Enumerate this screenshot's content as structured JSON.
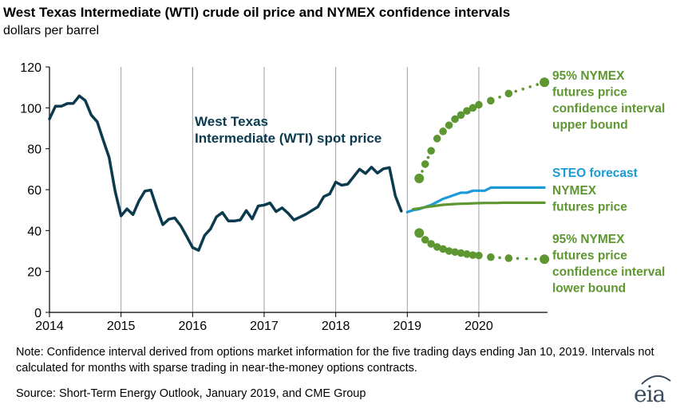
{
  "title": "West Texas Intermediate (WTI) crude oil price and NYMEX confidence intervals",
  "subtitle": "dollars per barrel",
  "note": "Note: Confidence interval derived from options market information for the five trading days ending Jan 10, 2019. Intervals not calculated for months with sparse trading in near-the-money options contracts.",
  "source": "Source: Short-Term Energy Outlook, January 2019, and CME Group",
  "logo_text": "eia",
  "colors": {
    "spot": "#0b3a4f",
    "steo": "#1a9ad6",
    "nymex": "#5e9732",
    "axis": "#000000",
    "grid": "#9e9e9e"
  },
  "chart_data": {
    "type": "line",
    "xlabel": "",
    "ylabel": "",
    "xlim": [
      2014,
      2020.96
    ],
    "ylim": [
      0,
      120
    ],
    "x_ticks": [
      "2014",
      "2015",
      "2016",
      "2017",
      "2018",
      "2019",
      "2020"
    ],
    "y_ticks": [
      "0",
      "20",
      "40",
      "60",
      "80",
      "100",
      "120"
    ],
    "vertical_gridlines": true,
    "series": [
      {
        "name": "West Texas Intermediate (WTI) spot price",
        "label_lines": [
          "West Texas",
          "Intermediate (WTI) spot price"
        ],
        "style": "line",
        "color": "#0b3a4f",
        "x": [
          "2014-01",
          "2014-02",
          "2014-03",
          "2014-04",
          "2014-05",
          "2014-06",
          "2014-07",
          "2014-08",
          "2014-09",
          "2014-10",
          "2014-11",
          "2014-12",
          "2015-01",
          "2015-02",
          "2015-03",
          "2015-04",
          "2015-05",
          "2015-06",
          "2015-07",
          "2015-08",
          "2015-09",
          "2015-10",
          "2015-11",
          "2015-12",
          "2016-01",
          "2016-02",
          "2016-03",
          "2016-04",
          "2016-05",
          "2016-06",
          "2016-07",
          "2016-08",
          "2016-09",
          "2016-10",
          "2016-11",
          "2016-12",
          "2017-01",
          "2017-02",
          "2017-03",
          "2017-04",
          "2017-05",
          "2017-06",
          "2017-07",
          "2017-08",
          "2017-09",
          "2017-10",
          "2017-11",
          "2017-12",
          "2018-01",
          "2018-02",
          "2018-03",
          "2018-04",
          "2018-05",
          "2018-06",
          "2018-07",
          "2018-08",
          "2018-09",
          "2018-10",
          "2018-11",
          "2018-12"
        ],
        "values": [
          94.6,
          100.8,
          100.8,
          102.1,
          102.2,
          105.8,
          103.6,
          96.5,
          93.2,
          84.4,
          75.8,
          59.3,
          47.2,
          50.6,
          47.8,
          54.5,
          59.3,
          59.8,
          50.9,
          42.9,
          45.5,
          46.2,
          42.4,
          37.2,
          31.7,
          30.3,
          37.6,
          40.8,
          46.7,
          48.8,
          44.7,
          44.7,
          45.2,
          49.8,
          45.7,
          52.0,
          52.5,
          53.5,
          49.3,
          51.1,
          48.5,
          45.2,
          46.6,
          48.0,
          49.8,
          51.6,
          56.6,
          57.9,
          63.7,
          62.2,
          62.7,
          66.3,
          70.0,
          67.9,
          71.0,
          68.1,
          70.2,
          70.8,
          57.0,
          49.5
        ]
      },
      {
        "name": "STEO forecast",
        "style": "line",
        "color": "#1a9ad6",
        "x": [
          "2019-01",
          "2019-02",
          "2019-03",
          "2019-04",
          "2019-05",
          "2019-06",
          "2019-07",
          "2019-08",
          "2019-09",
          "2019-10",
          "2019-11",
          "2019-12",
          "2020-01",
          "2020-02",
          "2020-03",
          "2020-04",
          "2020-05",
          "2020-06",
          "2020-07",
          "2020-08",
          "2020-09",
          "2020-10",
          "2020-11",
          "2020-12"
        ],
        "values": [
          49.0,
          50.0,
          50.5,
          51.5,
          52.5,
          54.0,
          55.5,
          56.5,
          57.5,
          58.5,
          58.5,
          59.5,
          59.5,
          59.5,
          61.0,
          61.0,
          61.0,
          61.0,
          61.0,
          61.0,
          61.0,
          61.0,
          61.0,
          61.0
        ]
      },
      {
        "name": "NYMEX futures price",
        "label_lines": [
          "NYMEX",
          "futures price"
        ],
        "style": "line",
        "color": "#5e9732",
        "x": [
          "2019-02",
          "2019-03",
          "2019-04",
          "2019-05",
          "2019-06",
          "2019-07",
          "2019-08",
          "2019-09",
          "2019-10",
          "2019-11",
          "2019-12",
          "2020-01",
          "2020-02",
          "2020-03",
          "2020-04",
          "2020-05",
          "2020-06",
          "2020-07",
          "2020-08",
          "2020-09",
          "2020-10",
          "2020-11",
          "2020-12"
        ],
        "values": [
          50.5,
          50.9,
          51.4,
          51.8,
          52.2,
          52.6,
          52.8,
          53.0,
          53.1,
          53.2,
          53.3,
          53.4,
          53.5,
          53.5,
          53.5,
          53.6,
          53.6,
          53.6,
          53.6,
          53.6,
          53.6,
          53.6,
          53.6
        ]
      },
      {
        "name": "95% NYMEX futures price confidence interval upper bound",
        "label_lines": [
          "95% NYMEX",
          "futures price",
          "confidence interval",
          "upper bound"
        ],
        "style": "dots",
        "color": "#5e9732",
        "x": [
          "2019-03",
          "2019-04",
          "2019-05",
          "2019-06",
          "2019-07",
          "2019-08",
          "2019-09",
          "2019-10",
          "2019-11",
          "2019-12",
          "2020-01",
          "2020-03",
          "2020-06",
          "2020-12"
        ],
        "values": [
          65.5,
          72.5,
          79.0,
          85.0,
          88.5,
          91.5,
          94.5,
          96.5,
          98.5,
          100.0,
          101.5,
          103.5,
          107.0,
          112.5
        ]
      },
      {
        "name": "95% NYMEX futures price confidence interval lower bound",
        "label_lines": [
          "95% NYMEX",
          "futures price",
          "confidence interval",
          "lower bound"
        ],
        "style": "dots",
        "color": "#5e9732",
        "x": [
          "2019-03",
          "2019-04",
          "2019-05",
          "2019-06",
          "2019-07",
          "2019-08",
          "2019-09",
          "2019-10",
          "2019-11",
          "2019-12",
          "2020-01",
          "2020-03",
          "2020-06",
          "2020-12"
        ],
        "values": [
          38.8,
          35.5,
          33.5,
          32.0,
          31.0,
          30.0,
          29.5,
          29.0,
          28.5,
          28.0,
          27.8,
          27.0,
          26.5,
          26.0
        ]
      }
    ]
  }
}
